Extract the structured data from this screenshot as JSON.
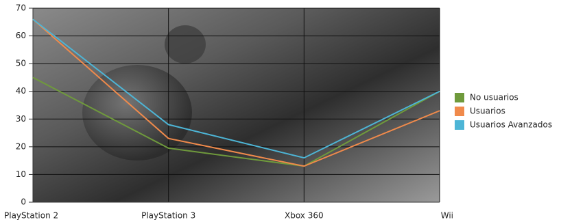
{
  "chart_data": {
    "type": "line",
    "categories": [
      "PlayStation 2",
      "PlayStation 3",
      "Xbox 360",
      "Wii"
    ],
    "series": [
      {
        "name": "No usuarios",
        "color": "#6f9a3c",
        "values": [
          45,
          19.5,
          13,
          40
        ]
      },
      {
        "name": "Usuarios",
        "color": "#f08a4b",
        "values": [
          66,
          23,
          13,
          33
        ]
      },
      {
        "name": "Usuarios Avanzados",
        "color": "#4db5d6",
        "values": [
          66,
          28,
          16,
          40
        ]
      }
    ],
    "ylim": [
      0,
      70
    ],
    "yticks": [
      0,
      10,
      20,
      30,
      40,
      50,
      60,
      70
    ],
    "grid": true,
    "legend": "right"
  }
}
